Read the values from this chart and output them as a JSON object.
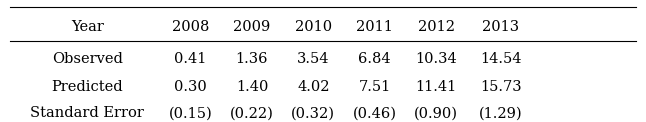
{
  "columns": [
    "Year",
    "2008",
    "2009",
    "2010",
    "2011",
    "2012",
    "2013"
  ],
  "rows": [
    [
      "Observed",
      "0.41",
      "1.36",
      "3.54",
      "6.84",
      "10.34",
      "14.54"
    ],
    [
      "Predicted",
      "0.30",
      "1.40",
      "4.02",
      "7.51",
      "11.41",
      "15.73"
    ],
    [
      "Standard Error",
      "(0.15)",
      "(0.22)",
      "(0.32)",
      "(0.46)",
      "(0.90)",
      "(1.29)"
    ]
  ],
  "bg_color": "#ffffff",
  "text_color": "#000000",
  "font_size": 10.5,
  "figsize": [
    6.46,
    1.22
  ],
  "dpi": 100
}
